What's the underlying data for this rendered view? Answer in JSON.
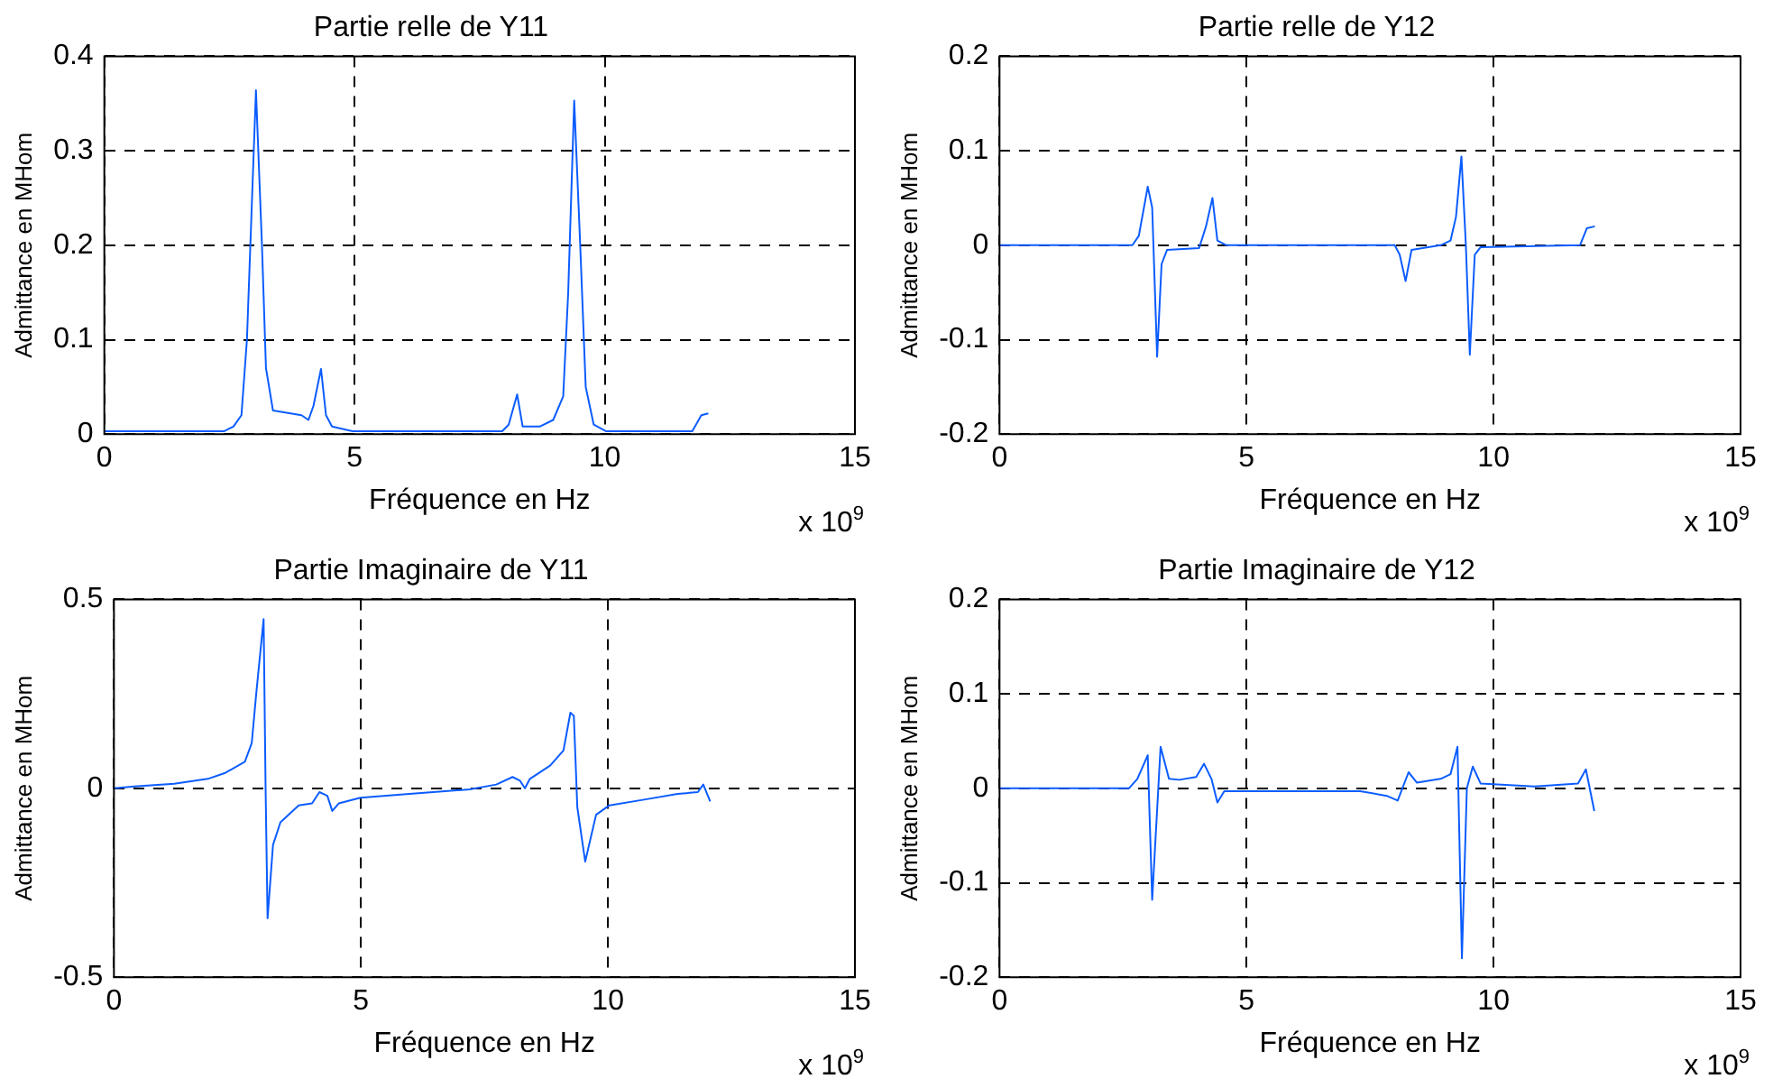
{
  "chart_data": [
    {
      "type": "line",
      "title": "Partie relle de Y11",
      "xlabel": "Fréquence en Hz",
      "ylabel": "Admittance en MHom",
      "annotations": [
        "x 10$^{9}$"
      ],
      "grid": true,
      "legend": false,
      "xlim": [
        0,
        15
      ],
      "xticks": [
        0,
        5,
        10,
        15
      ],
      "ylim": [
        0,
        0.4
      ],
      "yticks": [
        0,
        0.1,
        0.2,
        0.3,
        0.4
      ],
      "series": [
        {
          "color": "#0b5cff",
          "x": [
            0,
            2.39,
            2.58,
            2.74,
            2.85,
            3.03,
            3.15,
            3.23,
            3.37,
            3.94,
            4.08,
            4.18,
            4.33,
            4.43,
            4.55,
            4.96,
            7.95,
            8.08,
            8.25,
            8.36,
            8.7,
            8.97,
            9.17,
            9.27,
            9.39,
            9.51,
            9.62,
            9.78,
            10.03,
            11.75,
            11.93,
            12.07
          ],
          "values": [
            0.003,
            0.003,
            0.008,
            0.02,
            0.1,
            0.364,
            0.2,
            0.07,
            0.025,
            0.02,
            0.015,
            0.03,
            0.069,
            0.02,
            0.008,
            0.003,
            0.003,
            0.01,
            0.042,
            0.008,
            0.008,
            0.015,
            0.04,
            0.15,
            0.353,
            0.2,
            0.05,
            0.01,
            0.003,
            0.003,
            0.02,
            0.022
          ]
        }
      ]
    },
    {
      "type": "line",
      "title": "Partie relle de Y12",
      "xlabel": "Fréquence en Hz",
      "ylabel": "Admittance en MHom",
      "annotations": [
        "x 10$^{9}$"
      ],
      "grid": true,
      "legend": false,
      "xlim": [
        0,
        15
      ],
      "xticks": [
        0,
        5,
        10,
        15
      ],
      "ylim": [
        -0.2,
        0.2
      ],
      "yticks": [
        -0.2,
        -0.1,
        0,
        0.1,
        0.2
      ],
      "series": [
        {
          "color": "#0b5cff",
          "x": [
            0,
            2.69,
            2.82,
            3.0,
            3.09,
            3.19,
            3.28,
            3.39,
            4.04,
            4.18,
            4.31,
            4.41,
            4.59,
            8.0,
            8.1,
            8.22,
            8.34,
            8.93,
            9.13,
            9.24,
            9.35,
            9.44,
            9.52,
            9.62,
            9.74,
            11.75,
            11.89,
            12.05
          ],
          "values": [
            0,
            0,
            0.01,
            0.062,
            0.04,
            -0.118,
            -0.02,
            -0.005,
            -0.003,
            0.02,
            0.05,
            0.005,
            0,
            0,
            -0.01,
            -0.038,
            -0.005,
            0,
            0.005,
            0.03,
            0.094,
            0,
            -0.116,
            -0.01,
            -0.002,
            0,
            0.018,
            0.02
          ]
        }
      ]
    },
    {
      "type": "line",
      "title": "Partie Imaginaire de Y11",
      "xlabel": "Fréquence en Hz",
      "ylabel": "Admittance en MHom",
      "annotations": [
        "x 10$^{9}$"
      ],
      "grid": true,
      "legend": false,
      "xlim": [
        0,
        15
      ],
      "xticks": [
        0,
        5,
        10,
        15
      ],
      "ylim": [
        -0.5,
        0.5
      ],
      "yticks": [
        -0.5,
        0,
        0.5
      ],
      "series": [
        {
          "color": "#0b5cff",
          "x": [
            0,
            0.41,
            1.22,
            1.9,
            2.24,
            2.65,
            2.79,
            2.88,
            3.03,
            3.07,
            3.11,
            3.22,
            3.37,
            3.74,
            4.01,
            4.16,
            4.32,
            4.42,
            4.55,
            4.99,
            5.98,
            7.2,
            7.74,
            8.07,
            8.22,
            8.32,
            8.42,
            8.83,
            9.1,
            9.24,
            9.31,
            9.38,
            9.54,
            9.76,
            10.03,
            10.73,
            11.41,
            11.82,
            11.93,
            12.07
          ],
          "values": [
            0,
            0.005,
            0.012,
            0.025,
            0.04,
            0.07,
            0.12,
            0.25,
            0.448,
            0,
            -0.344,
            -0.15,
            -0.09,
            -0.045,
            -0.04,
            -0.01,
            -0.02,
            -0.06,
            -0.04,
            -0.025,
            -0.015,
            -0.003,
            0.01,
            0.03,
            0.02,
            0,
            0.025,
            0.06,
            0.1,
            0.2,
            0.192,
            -0.05,
            -0.194,
            -0.07,
            -0.045,
            -0.03,
            -0.015,
            -0.01,
            0.01,
            -0.035
          ]
        }
      ]
    },
    {
      "type": "line",
      "title": "Partie Imaginaire de Y12",
      "xlabel": "Fréquence en Hz",
      "ylabel": "Admittance en MHom",
      "annotations": [
        "x 10$^{9}$"
      ],
      "grid": true,
      "legend": false,
      "xlim": [
        0,
        15
      ],
      "xticks": [
        0,
        5,
        10,
        15
      ],
      "ylim": [
        -0.2,
        0.2
      ],
      "yticks": [
        -0.2,
        -0.1,
        0,
        0.1,
        0.2
      ],
      "series": [
        {
          "color": "#0b5cff",
          "x": [
            0,
            2.62,
            2.79,
            3.0,
            3.09,
            3.26,
            3.43,
            3.64,
            3.98,
            4.14,
            4.29,
            4.41,
            4.55,
            5.13,
            7.3,
            7.84,
            8.06,
            8.28,
            8.45,
            8.93,
            9.13,
            9.27,
            9.36,
            9.46,
            9.58,
            9.74,
            10.83,
            11.71,
            11.87,
            12.04
          ],
          "values": [
            0,
            0,
            0.01,
            0.035,
            -0.118,
            0.044,
            0.01,
            0.009,
            0.012,
            0.026,
            0.01,
            -0.015,
            -0.003,
            -0.003,
            -0.003,
            -0.008,
            -0.013,
            0.017,
            0.006,
            0.01,
            0.015,
            0.044,
            -0.18,
            0,
            0.023,
            0.005,
            0.002,
            0.005,
            0.02,
            -0.024
          ]
        }
      ]
    }
  ]
}
